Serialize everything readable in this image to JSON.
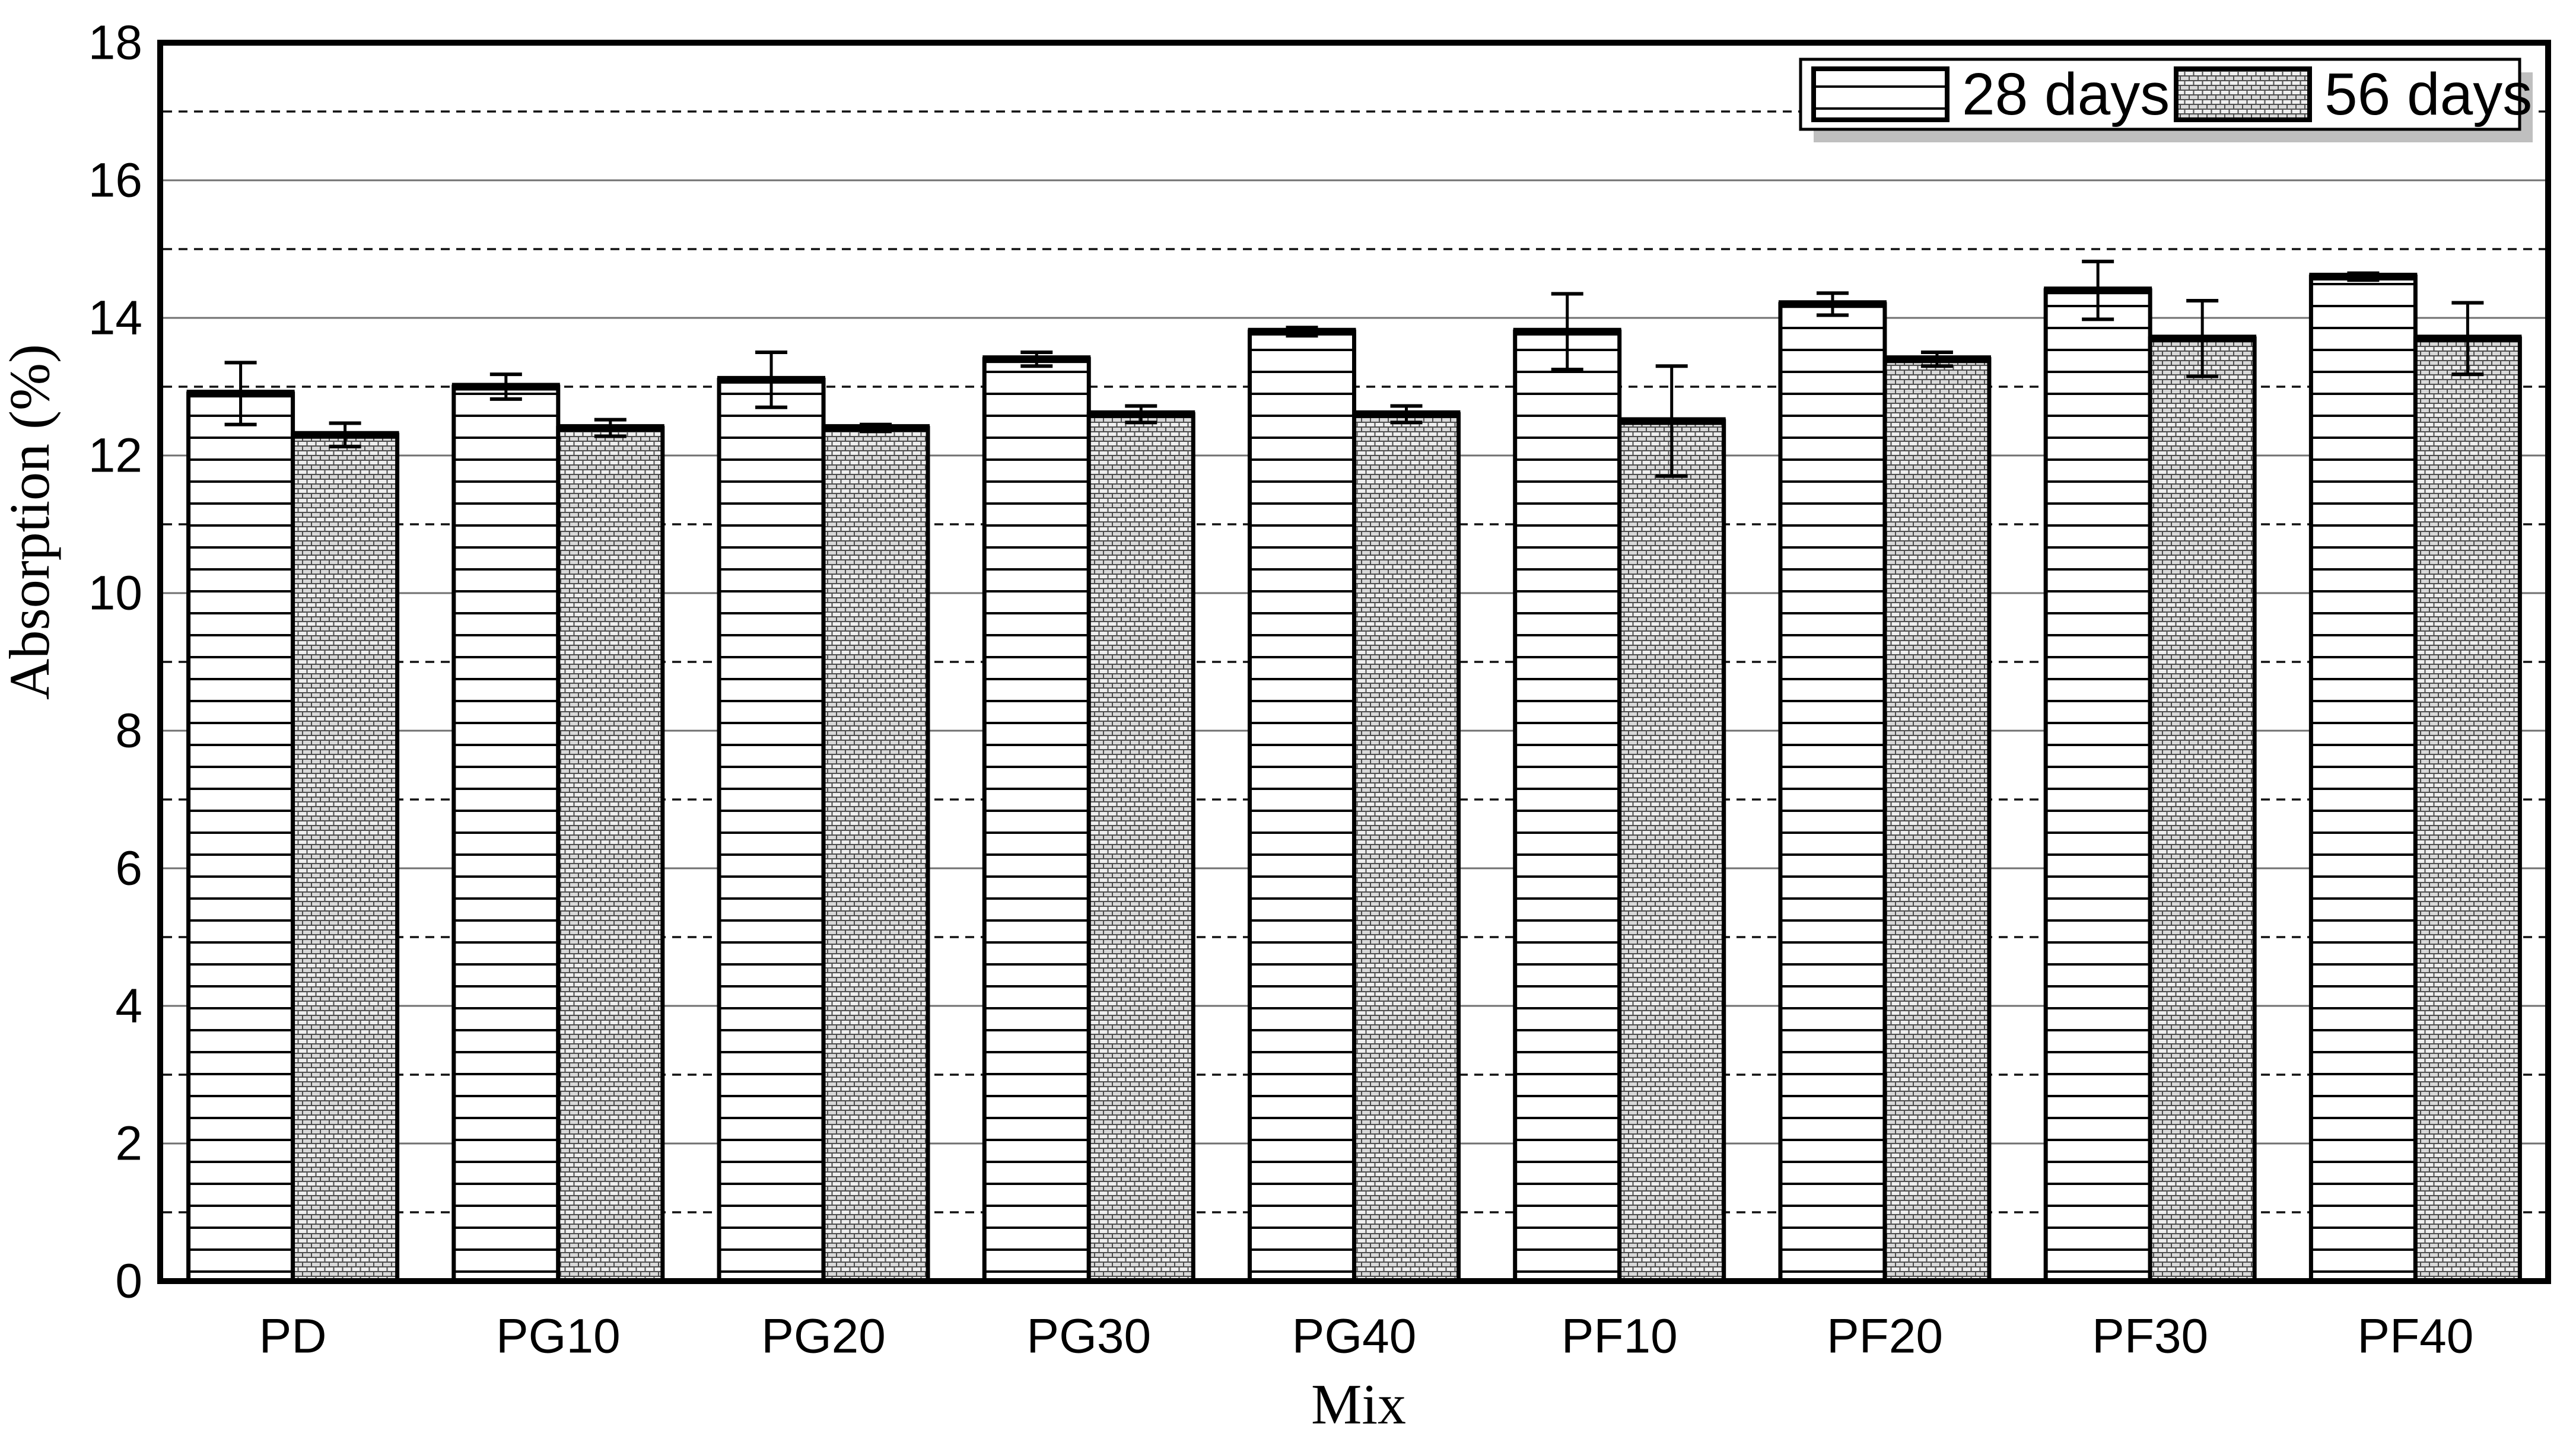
{
  "chart_data": {
    "type": "bar",
    "title": "",
    "xlabel": "Mix",
    "ylabel": "Absorption (%)",
    "ylim": [
      0,
      18
    ],
    "ytick_step": 2,
    "yticks": [
      0,
      2,
      4,
      6,
      8,
      10,
      12,
      14,
      16,
      18
    ],
    "minor_grid_dashed_at": [
      1,
      3,
      5,
      7,
      9,
      11,
      13,
      15,
      17
    ],
    "grid": "on",
    "legend_position": "top-right",
    "categories": [
      "PD",
      "PG10",
      "PG20",
      "PG30",
      "PG40",
      "PF10",
      "PF20",
      "PF30",
      "PF40"
    ],
    "series": [
      {
        "name": "28 days",
        "pattern": "horizontal-lines",
        "values": [
          12.9,
          13.0,
          13.1,
          13.4,
          13.8,
          13.8,
          14.2,
          14.4,
          14.6
        ],
        "errors": [
          0.45,
          0.18,
          0.4,
          0.1,
          0.06,
          0.55,
          0.16,
          0.42,
          0.05
        ]
      },
      {
        "name": "56 days",
        "pattern": "gray-bricks",
        "values": [
          12.3,
          12.4,
          12.4,
          12.6,
          12.6,
          12.5,
          13.4,
          13.7,
          13.7
        ],
        "errors": [
          0.17,
          0.12,
          0.05,
          0.12,
          0.12,
          0.8,
          0.1,
          0.55,
          0.52
        ]
      }
    ],
    "style": {
      "background": "#ffffff",
      "frame_color": "#000000",
      "bar_stroke": "#000000",
      "hatch_line_color": "#000000",
      "brick_fill": "#d9d9d9",
      "brick_mortar": "#4d4d4d",
      "solid_grid_color": "#707070",
      "dashed_grid_color": "#111111",
      "legend_shadow": "#bfbfbf",
      "text_color": "#000000"
    }
  },
  "legend": {
    "items": [
      {
        "label": "28 days"
      },
      {
        "label": "56 days"
      }
    ]
  },
  "axes": {
    "x_title": "Mix",
    "y_title": "Absorption (%)"
  }
}
